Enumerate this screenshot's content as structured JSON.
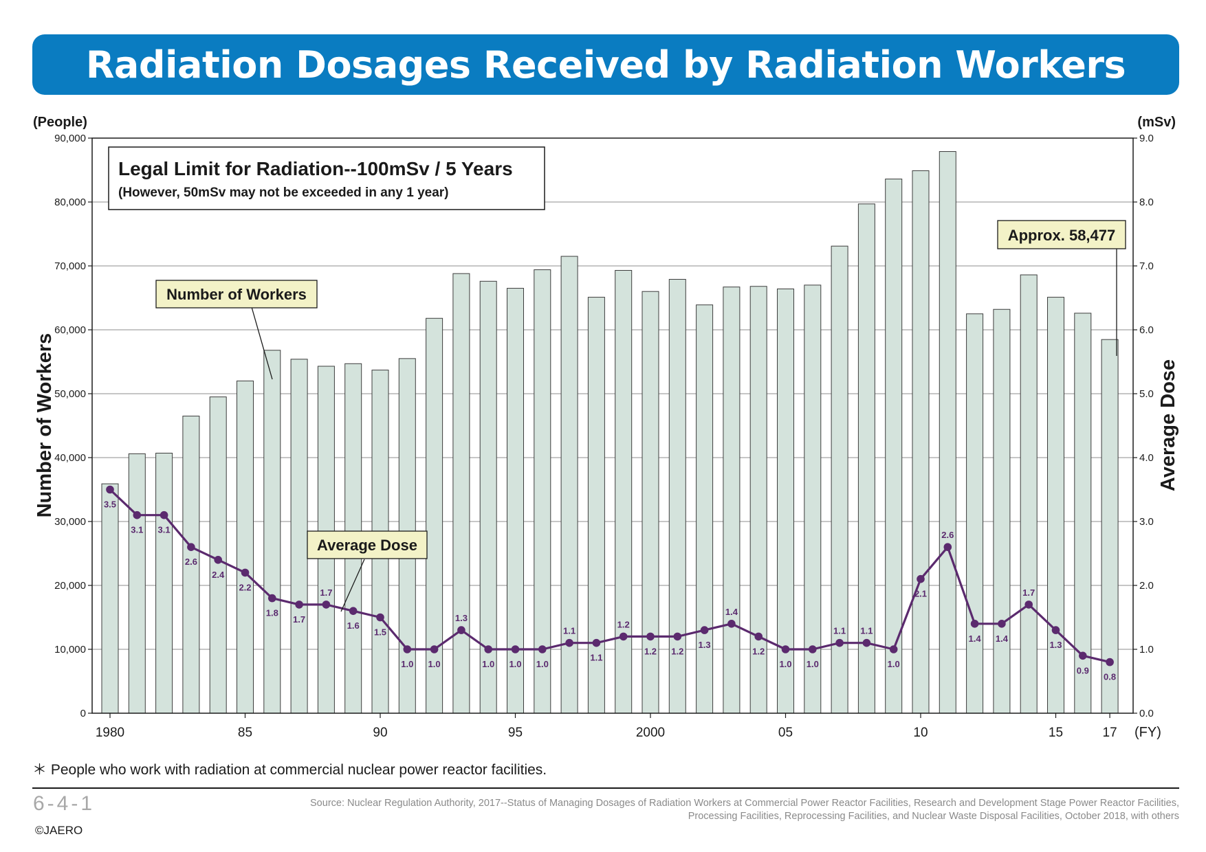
{
  "header": {
    "title": "Radiation Dosages Received by Radiation Workers"
  },
  "chart_data": {
    "type": "bar",
    "years": [
      1980,
      1981,
      1982,
      1983,
      1984,
      1985,
      1986,
      1987,
      1988,
      1989,
      1990,
      1991,
      1992,
      1993,
      1994,
      1995,
      1996,
      1997,
      1998,
      1999,
      2000,
      2001,
      2002,
      2003,
      2004,
      2005,
      2006,
      2007,
      2008,
      2009,
      2010,
      2011,
      2012,
      2013,
      2014,
      2015,
      2016,
      2017
    ],
    "x_tick_labels": [
      {
        "year": 1980,
        "label": "1980"
      },
      {
        "year": 1985,
        "label": "85"
      },
      {
        "year": 1990,
        "label": "90"
      },
      {
        "year": 1995,
        "label": "95"
      },
      {
        "year": 2000,
        "label": "2000"
      },
      {
        "year": 2005,
        "label": "05"
      },
      {
        "year": 2010,
        "label": "10"
      },
      {
        "year": 2015,
        "label": "15"
      },
      {
        "year": 2017,
        "label": "17"
      }
    ],
    "xunit": "(FY)",
    "series": [
      {
        "name": "Number of Workers",
        "type": "bar",
        "axis": "left",
        "color": "#d4e3dc",
        "values": [
          35900,
          40600,
          40700,
          46500,
          49500,
          52000,
          56800,
          55400,
          54300,
          54700,
          53700,
          55500,
          61800,
          68800,
          67600,
          66500,
          69400,
          71500,
          65100,
          69300,
          66000,
          67900,
          63900,
          66700,
          66800,
          66400,
          67000,
          73100,
          79700,
          83600,
          84900,
          87900,
          62500,
          63200,
          68600,
          65100,
          62600,
          58477
        ]
      },
      {
        "name": "Average Dose",
        "type": "line",
        "axis": "right",
        "color": "#5b2a6e",
        "values": [
          3.5,
          3.1,
          3.1,
          2.6,
          2.4,
          2.2,
          1.8,
          1.7,
          1.7,
          1.6,
          1.5,
          1.0,
          1.0,
          1.3,
          1.0,
          1.0,
          1.0,
          1.1,
          1.1,
          1.2,
          1.2,
          1.2,
          1.3,
          1.4,
          1.2,
          1.0,
          1.0,
          1.1,
          1.1,
          1.0,
          2.1,
          2.6,
          1.4,
          1.4,
          1.7,
          1.3,
          0.9,
          0.8
        ],
        "labels": [
          "3.5",
          "3.1",
          "3.1",
          "2.6",
          "2.4",
          "2.2",
          "1.8",
          "1.7",
          "1.7",
          "1.6",
          "1.5",
          "1.0",
          "1.0",
          "1.3",
          "1.0",
          "1.0",
          "1.0",
          "1.1",
          "1.1",
          "1.2",
          "1.2",
          "1.2",
          "1.3",
          "1.4",
          "1.2",
          "1.0",
          "1.0",
          "1.1",
          "1.1",
          "1.0",
          "2.1",
          "2.6",
          "1.4",
          "1.4",
          "1.7",
          "1.3",
          "0.9",
          "0.8"
        ]
      }
    ],
    "y_left": {
      "label": "Number of Workers",
      "unit": "(People)",
      "ylim": [
        0,
        90000
      ],
      "ticks": [
        "0",
        "10,000",
        "20,000",
        "30,000",
        "40,000",
        "50,000",
        "60,000",
        "70,000",
        "80,000",
        "90,000"
      ]
    },
    "y_right": {
      "label": "Average Dose",
      "unit": "(mSv)",
      "ylim": [
        0,
        9
      ],
      "ticks": [
        "0.0",
        "1.0",
        "2.0",
        "3.0",
        "4.0",
        "5.0",
        "6.0",
        "7.0",
        "8.0",
        "9.0"
      ]
    },
    "grid": true,
    "legal_limit": {
      "title": "Legal Limit for Radiation--100mSv / 5 Years",
      "note": "(However, 50mSv may not be exceeded in any 1 year)"
    },
    "annotations": {
      "workers_callout": "Number of Workers",
      "dose_callout": "Average Dose",
      "latest_callout": "Approx. 58,477"
    }
  },
  "footnote": "＊ People who work with radiation at commercial nuclear power reactor facilities.",
  "footer": {
    "page_code": "6-4-1",
    "copyright": "©JAERO",
    "source_line1": "Source: Nuclear Regulation Authority, 2017--Status of Managing Dosages of Radiation Workers at Commercial Power Reactor Facilities, Research and Development Stage Power Reactor Facilities,",
    "source_line2": "Processing Facilities, Reprocessing Facilities, and Nuclear Waste Disposal Facilities, October 2018, with others"
  }
}
